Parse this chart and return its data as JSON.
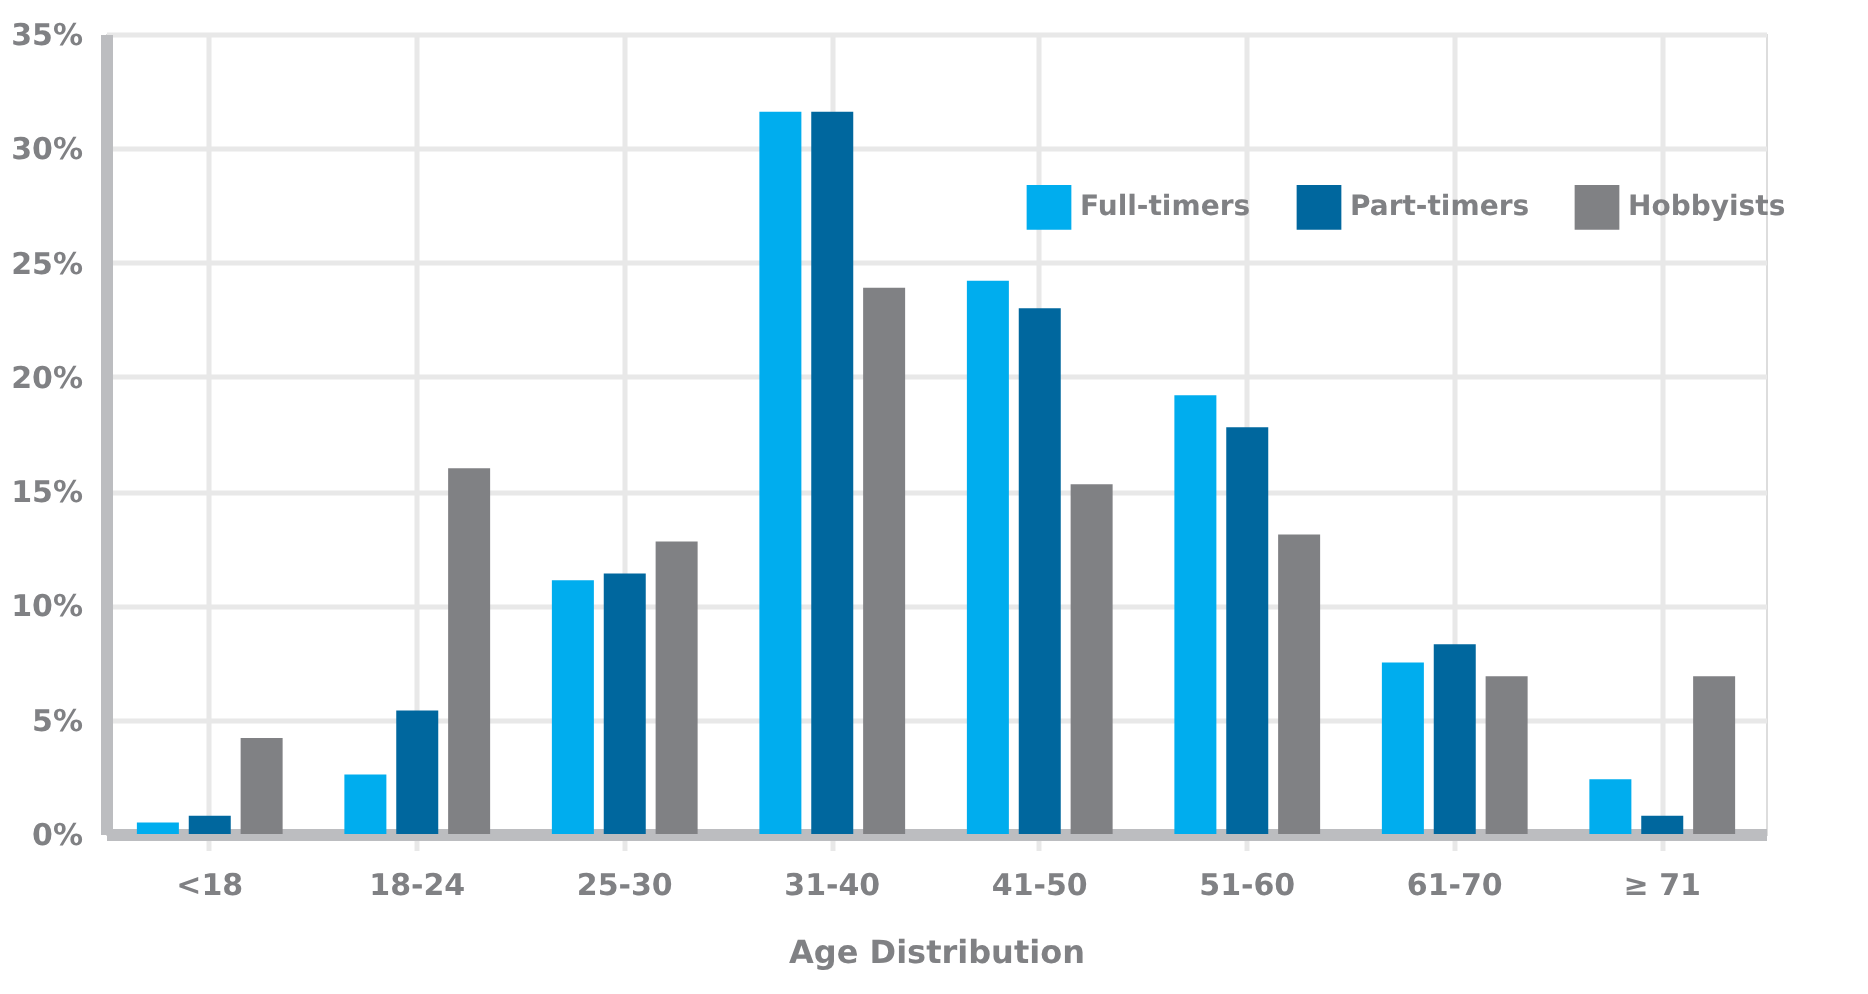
{
  "chart_data": {
    "type": "bar",
    "xlabel": "Age Distribution",
    "categories": [
      "<18",
      "18-24",
      "25-30",
      "31-40",
      "41-50",
      "51-60",
      "61-70",
      "≥ 71"
    ],
    "series": [
      {
        "name": "Full-timers",
        "color": "#00adee",
        "values": [
          0.5,
          2.6,
          11.1,
          31.6,
          24.2,
          19.2,
          7.5,
          2.4
        ]
      },
      {
        "name": "Part-timers",
        "color": "#00679e",
        "values": [
          0.8,
          5.4,
          11.4,
          31.6,
          23.0,
          17.8,
          8.3,
          0.8
        ]
      },
      {
        "name": "Hobbyists",
        "color": "#808184",
        "values": [
          4.2,
          16.0,
          12.8,
          23.9,
          15.3,
          13.1,
          6.9,
          6.9
        ]
      }
    ],
    "ylim": [
      0,
      35
    ],
    "yticks": [
      {
        "value": 0,
        "label": "0%"
      },
      {
        "value": 5,
        "label": "5%"
      },
      {
        "value": 10,
        "label": "10%"
      },
      {
        "value": 15,
        "label": "15%"
      },
      {
        "value": 20,
        "label": "20%"
      },
      {
        "value": 25,
        "label": "25%"
      },
      {
        "value": 30,
        "label": "30%"
      },
      {
        "value": 35,
        "label": "35%"
      }
    ],
    "grid": true,
    "legend": "top right"
  }
}
